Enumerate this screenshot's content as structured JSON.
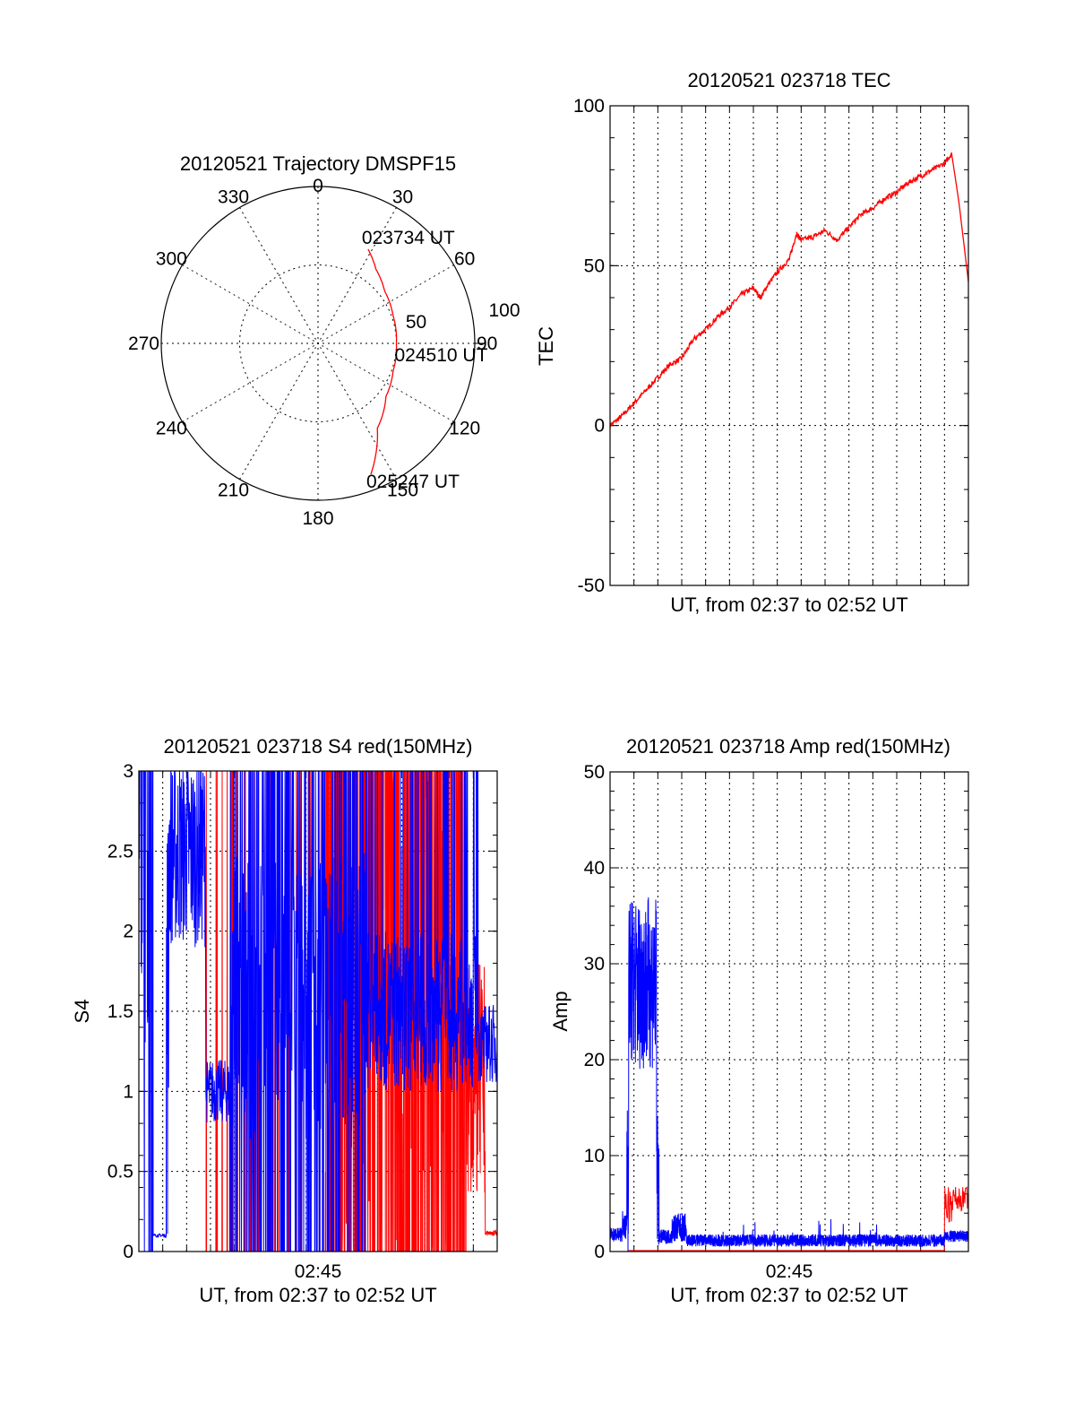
{
  "chart_data": [
    {
      "id": "polar",
      "type": "polar",
      "title": "20120521 Trajectory DMSPF15",
      "azimuth_ticks": [
        "0",
        "30",
        "60",
        "90",
        "120",
        "150",
        "180",
        "210",
        "240",
        "270",
        "300",
        "330"
      ],
      "radial_ticks": [
        "50",
        "100"
      ],
      "rlim": [
        0,
        100
      ],
      "grid": true,
      "track": {
        "color": "#ff0000",
        "points": [
          {
            "az": 28,
            "r": 68
          },
          {
            "az": 38,
            "r": 60
          },
          {
            "az": 52,
            "r": 54
          },
          {
            "az": 70,
            "r": 51
          },
          {
            "az": 90,
            "r": 50
          },
          {
            "az": 110,
            "r": 51
          },
          {
            "az": 128,
            "r": 55
          },
          {
            "az": 145,
            "r": 66
          },
          {
            "az": 158,
            "r": 90
          }
        ]
      },
      "annotations": [
        {
          "text": "023734 UT",
          "az": 28,
          "r": 68
        },
        {
          "text": "024510 UT",
          "az": 90,
          "r": 50
        },
        {
          "text": "025247 UT",
          "az": 158,
          "r": 90
        }
      ]
    },
    {
      "id": "tec",
      "type": "line",
      "title": "20120521 023718 TEC",
      "xlabel": "UT, from 02:37 to 02:52 UT",
      "ylabel": "TEC",
      "xlim": [
        0,
        15
      ],
      "ylim": [
        -50,
        100
      ],
      "yticks": [
        "-50",
        "0",
        "50",
        "100"
      ],
      "xticks": [],
      "grid": true,
      "series": [
        {
          "color": "#ff0000",
          "x": [
            0,
            0.5,
            1.0,
            1.5,
            2.0,
            2.5,
            3.0,
            3.5,
            4.0,
            4.5,
            5.0,
            5.5,
            6.0,
            6.3,
            6.6,
            7.0,
            7.5,
            7.8,
            8.0,
            8.5,
            9.0,
            9.5,
            10.0,
            10.5,
            11.0,
            11.5,
            12.0,
            12.5,
            13.0,
            13.5,
            14.0,
            14.3,
            14.6,
            15.0
          ],
          "y": [
            0,
            3,
            7,
            11,
            15,
            19,
            21,
            27,
            30,
            34,
            37,
            41,
            43,
            40,
            44,
            48,
            52,
            60,
            58,
            59,
            61,
            58,
            62,
            66,
            68,
            71,
            73,
            76,
            78,
            80,
            82,
            85,
            70,
            45
          ]
        }
      ]
    },
    {
      "id": "s4",
      "type": "line",
      "title": "20120521 023718 S4 red(150MHz)",
      "xlabel": "UT, from 02:37 to 02:52 UT",
      "ylabel": "S4",
      "xlim": [
        0,
        15
      ],
      "ylim": [
        0,
        3
      ],
      "yticks": [
        "0",
        "0.5",
        "1",
        "1.5",
        "2",
        "2.5",
        "3"
      ],
      "xticks": [
        {
          "value": 7.5,
          "label": "02:45"
        }
      ],
      "grid": true,
      "series": [
        {
          "color": "#ff0000"
        },
        {
          "color": "#0000ff"
        }
      ]
    },
    {
      "id": "amp",
      "type": "line",
      "title": "20120521 023718 Amp red(150MHz)",
      "xlabel": "UT, from 02:37 to 02:52 UT",
      "ylabel": "Amp",
      "xlim": [
        0,
        15
      ],
      "ylim": [
        0,
        50
      ],
      "yticks": [
        "0",
        "10",
        "20",
        "30",
        "40",
        "50"
      ],
      "xticks": [
        {
          "value": 7.5,
          "label": "02:45"
        }
      ],
      "grid": true,
      "series": [
        {
          "color": "#ff0000"
        },
        {
          "color": "#0000ff"
        }
      ]
    }
  ]
}
